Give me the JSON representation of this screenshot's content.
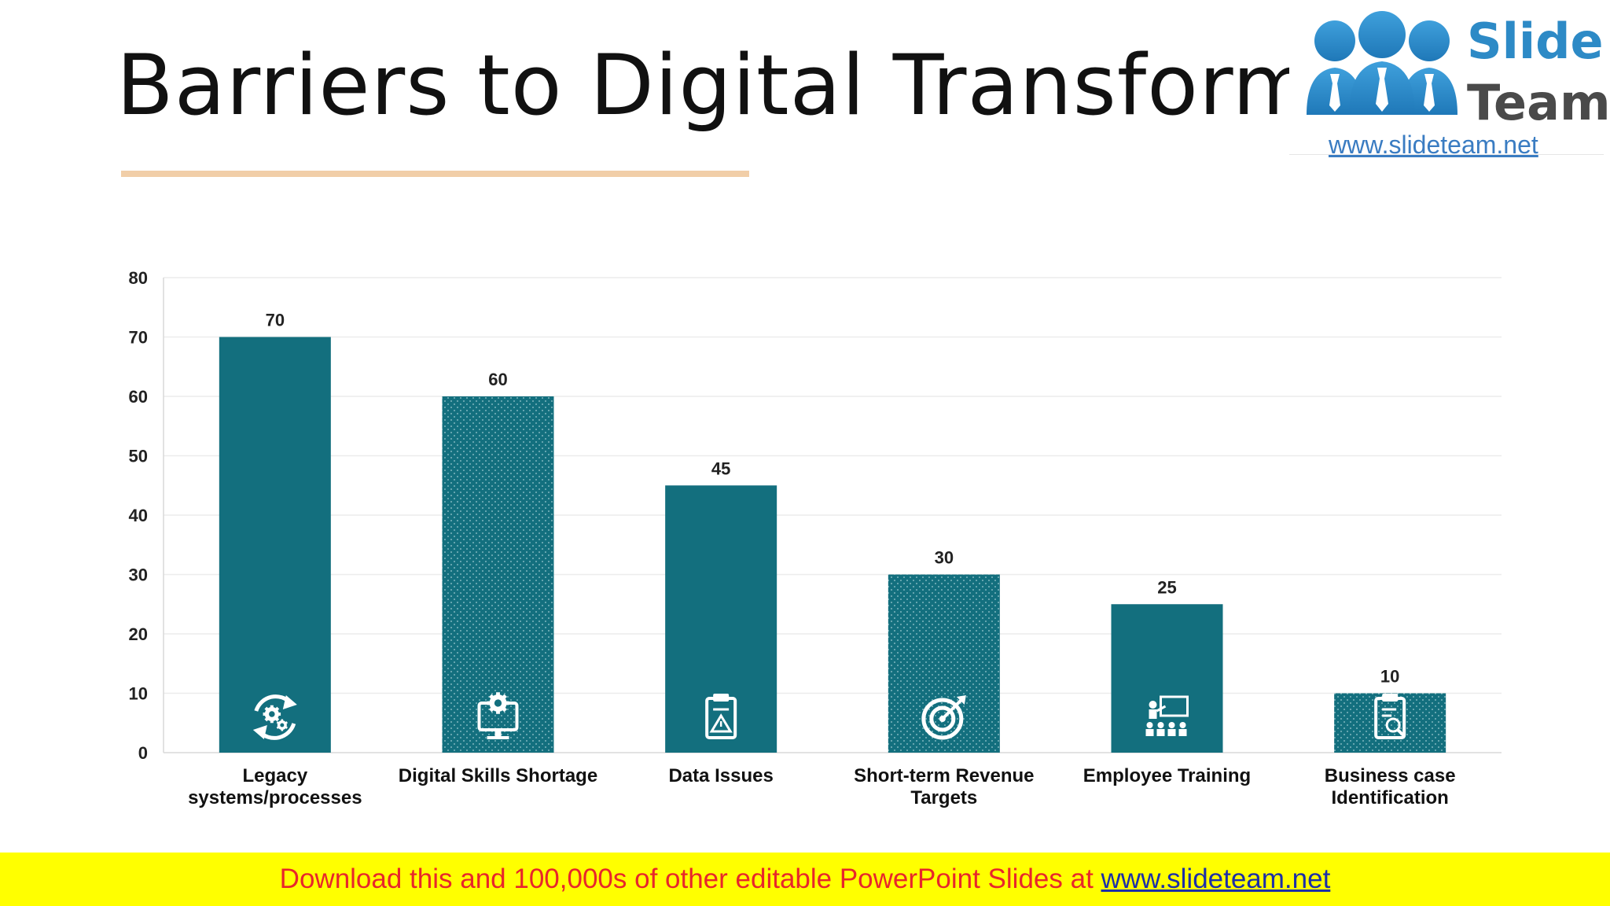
{
  "slide": {
    "title": "Barriers to Digital Transformation"
  },
  "logo": {
    "brand_line1": "Slide",
    "brand_line2": "Team",
    "url": "www.slideteam.net"
  },
  "banner": {
    "text": "Download this and 100,000s of other editable PowerPoint Slides at ",
    "link": "www.slideteam.net"
  },
  "colors": {
    "bar": "#136f7e",
    "rule": "#f1cea8",
    "banner_bg": "#ffff00",
    "banner_text": "#e8262b",
    "banner_link": "#1c2fa8"
  },
  "chart_data": {
    "type": "bar",
    "categories": [
      [
        "Legacy",
        "systems/processes"
      ],
      [
        "Digital Skills Shortage"
      ],
      [
        "Data Issues"
      ],
      [
        "Short-term Revenue",
        "Targets"
      ],
      [
        "Employee Training"
      ],
      [
        "Business case",
        "Identification"
      ]
    ],
    "values": [
      70,
      60,
      45,
      30,
      25,
      10
    ],
    "patterns": [
      "solid",
      "dotted",
      "solid",
      "dotted",
      "solid",
      "dotted"
    ],
    "icons": [
      "gears-cycle-icon",
      "monitor-gear-icon",
      "clipboard-warning-icon",
      "target-arrow-icon",
      "training-presentation-icon",
      "clipboard-search-icon"
    ],
    "ylim": [
      0,
      80
    ],
    "yticks": [
      0,
      10,
      20,
      30,
      40,
      50,
      60,
      70,
      80
    ],
    "grid": true,
    "legend": "none",
    "data_labels": true
  }
}
